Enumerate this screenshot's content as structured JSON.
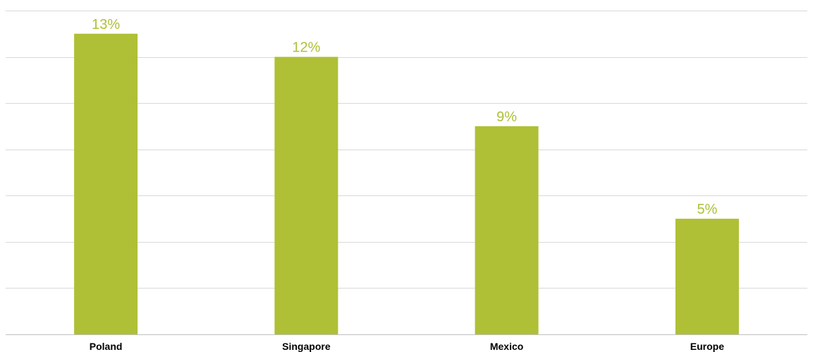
{
  "chart_data": {
    "type": "bar",
    "categories": [
      "Poland",
      "Singapore",
      "Mexico",
      "Europe"
    ],
    "values": [
      13,
      12,
      9,
      5
    ],
    "value_labels": [
      "13%",
      "12%",
      "9%",
      "5%"
    ],
    "unit": "%",
    "title": "",
    "xlabel": "",
    "ylabel": "",
    "ylim": [
      0,
      14
    ],
    "grid": true,
    "legend": "none",
    "colors": {
      "bar": "#afc036",
      "data_label": "#afc036",
      "gridline": "#d9d9d9"
    }
  }
}
